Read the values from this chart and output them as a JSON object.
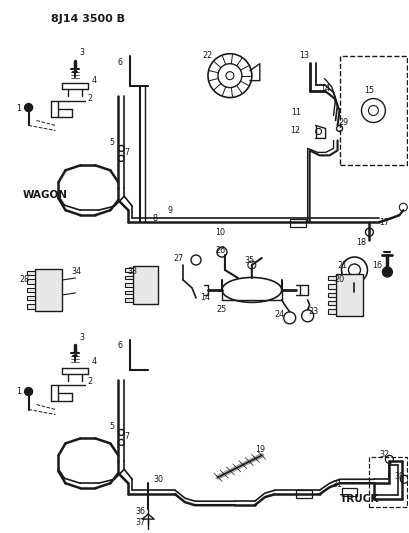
{
  "title": "8J14 3500 B",
  "bg_color": "#ffffff",
  "line_color": "#1a1a1a",
  "text_color": "#1a1a1a",
  "fig_width": 4.09,
  "fig_height": 5.33,
  "dpi": 100
}
